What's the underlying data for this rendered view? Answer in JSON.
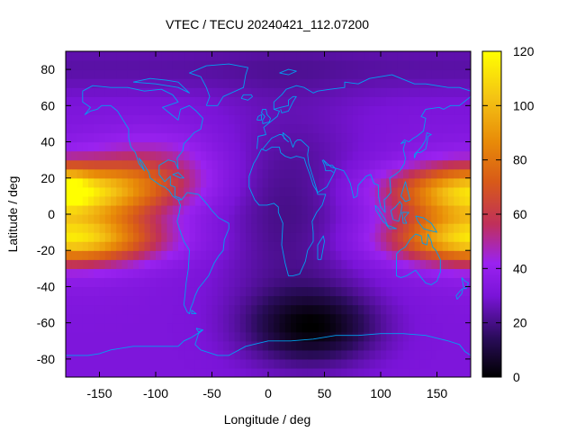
{
  "chart_data": {
    "type": "heatmap",
    "title": "VTEC / TECU 20240421_112.07200",
    "xlabel": "Longitude / deg",
    "ylabel": "Latitude / deg",
    "xlim": [
      -180,
      180
    ],
    "ylim": [
      -90,
      90
    ],
    "x_ticks": [
      -150,
      -100,
      -50,
      0,
      50,
      100,
      150
    ],
    "y_ticks": [
      -80,
      -60,
      -40,
      -20,
      0,
      20,
      40,
      60,
      80
    ],
    "colorbar": {
      "range": [
        0,
        120
      ],
      "ticks": [
        0,
        20,
        40,
        60,
        80,
        100,
        120
      ],
      "palette": [
        "#000000",
        "#2a0c5a",
        "#7a14d8",
        "#9a22f0",
        "#c0305a",
        "#d85a18",
        "#e88a08",
        "#f4c414",
        "#ffff00"
      ]
    },
    "colors": {
      "coastline": "#00a0f0",
      "frame": "#000000",
      "background": "#ffffff"
    },
    "overlay": "coastlines",
    "grid": false
  }
}
